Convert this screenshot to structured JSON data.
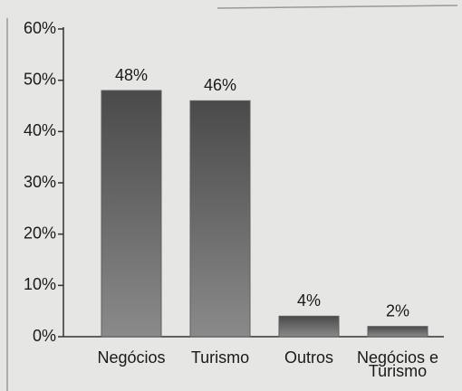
{
  "chart_data": {
    "type": "bar",
    "categories": [
      "Negócios",
      "Turismo",
      "Outros",
      "Negócios e Turismo"
    ],
    "values": [
      48,
      46,
      4,
      2
    ],
    "value_labels": [
      "48%",
      "46%",
      "4%",
      "2%"
    ],
    "color": "#5e5e5e",
    "ylim": [
      0,
      60
    ],
    "yticks": [
      {
        "value": 0,
        "label": "0%"
      },
      {
        "value": 10,
        "label": "10%"
      },
      {
        "value": 20,
        "label": "20%"
      },
      {
        "value": 30,
        "label": "30%"
      },
      {
        "value": 40,
        "label": "40%"
      },
      {
        "value": 50,
        "label": "50%"
      },
      {
        "value": 60,
        "label": "60%"
      }
    ]
  }
}
